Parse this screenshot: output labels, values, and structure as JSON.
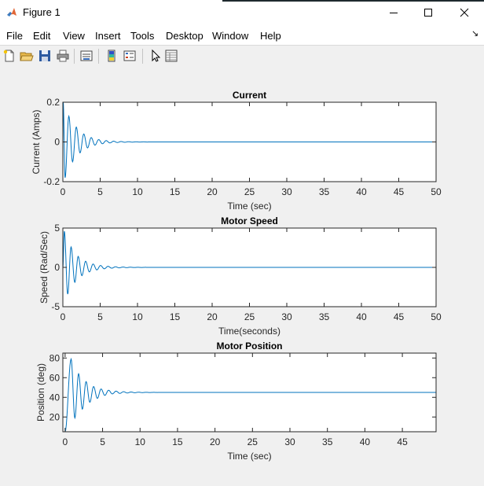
{
  "window": {
    "title": "Figure 1",
    "controls": [
      "minimize",
      "maximize",
      "close"
    ]
  },
  "menu": [
    "File",
    "Edit",
    "View",
    "Insert",
    "Tools",
    "Desktop",
    "Window",
    "Help"
  ],
  "toolbar": [
    "new-figure-icon",
    "open-file-icon",
    "save-icon",
    "print-icon",
    "link-plot-icon",
    "insert-colorbar-icon",
    "insert-legend-icon",
    "edit-plot-pointer-icon",
    "property-inspector-icon"
  ],
  "colors": {
    "line": "#0072bd",
    "figure_bg": "#f0f0f0",
    "axes_bg": "#ffffff"
  },
  "chart_data": [
    {
      "type": "line",
      "title": "Current",
      "xlabel": "Time (sec)",
      "ylabel": "Current (Amps)",
      "xlim": [
        0,
        50
      ],
      "ylim": [
        -0.2,
        0.2
      ],
      "xticks": [
        0,
        5,
        10,
        15,
        20,
        25,
        30,
        35,
        40,
        45,
        50
      ],
      "yticks": [
        -0.2,
        0,
        0.2
      ],
      "ytick_labels": [
        "-0.2",
        "0",
        "0.2"
      ],
      "final_value": 0,
      "peaks": [
        {
          "x": 0.05,
          "y": 0.2
        },
        {
          "x": 0.3,
          "y": -0.18
        },
        {
          "x": 0.8,
          "y": 0.13
        },
        {
          "x": 1.3,
          "y": -0.1
        },
        {
          "x": 1.8,
          "y": 0.075
        },
        {
          "x": 2.3,
          "y": -0.055
        },
        {
          "x": 2.8,
          "y": 0.04
        },
        {
          "x": 3.3,
          "y": -0.03
        },
        {
          "x": 3.8,
          "y": 0.022
        },
        {
          "x": 4.3,
          "y": -0.016
        },
        {
          "x": 4.8,
          "y": 0.012
        },
        {
          "x": 5.3,
          "y": -0.009
        }
      ]
    },
    {
      "type": "line",
      "title": "Motor Speed",
      "xlabel": "Time(seconds)",
      "ylabel": "Speed (Rad/Sec)",
      "xlim": [
        0,
        50
      ],
      "ylim": [
        -5,
        5
      ],
      "xticks": [
        0,
        5,
        10,
        15,
        20,
        25,
        30,
        35,
        40,
        45,
        50
      ],
      "yticks": [
        -5,
        0,
        5
      ],
      "ytick_labels": [
        "-5",
        "0",
        "5"
      ],
      "final_value": 0,
      "peaks": [
        {
          "x": 0.2,
          "y": 4.6
        },
        {
          "x": 0.65,
          "y": -3.4
        },
        {
          "x": 1.1,
          "y": 2.6
        },
        {
          "x": 1.6,
          "y": -1.9
        },
        {
          "x": 2.05,
          "y": 1.4
        },
        {
          "x": 2.55,
          "y": -1.05
        },
        {
          "x": 3.05,
          "y": 0.78
        },
        {
          "x": 3.55,
          "y": -0.58
        },
        {
          "x": 4.05,
          "y": 0.43
        },
        {
          "x": 4.55,
          "y": -0.32
        },
        {
          "x": 5.05,
          "y": 0.24
        }
      ]
    },
    {
      "type": "line",
      "title": "Motor Position",
      "xlabel": "Time (sec)",
      "ylabel": "Position (deg)",
      "xlim": [
        -0.3,
        49.5
      ],
      "ylim": [
        5,
        85
      ],
      "xticks": [
        0,
        5,
        10,
        15,
        20,
        25,
        30,
        35,
        40,
        45
      ],
      "yticks": [
        20,
        40,
        60,
        80
      ],
      "ytick_labels": [
        "20",
        "40",
        "60",
        "80"
      ],
      "start": {
        "x": 0,
        "y": 5
      },
      "final_value": 45,
      "peaks": [
        {
          "x": 0.8,
          "y": 79
        },
        {
          "x": 1.3,
          "y": 19
        },
        {
          "x": 1.8,
          "y": 64
        },
        {
          "x": 2.3,
          "y": 28
        },
        {
          "x": 2.8,
          "y": 56
        },
        {
          "x": 3.3,
          "y": 35
        },
        {
          "x": 3.8,
          "y": 51
        },
        {
          "x": 4.3,
          "y": 39
        },
        {
          "x": 4.8,
          "y": 48.5
        },
        {
          "x": 5.3,
          "y": 42
        },
        {
          "x": 5.8,
          "y": 47.2
        },
        {
          "x": 6.3,
          "y": 43.5
        },
        {
          "x": 6.8,
          "y": 46.3
        }
      ]
    }
  ]
}
